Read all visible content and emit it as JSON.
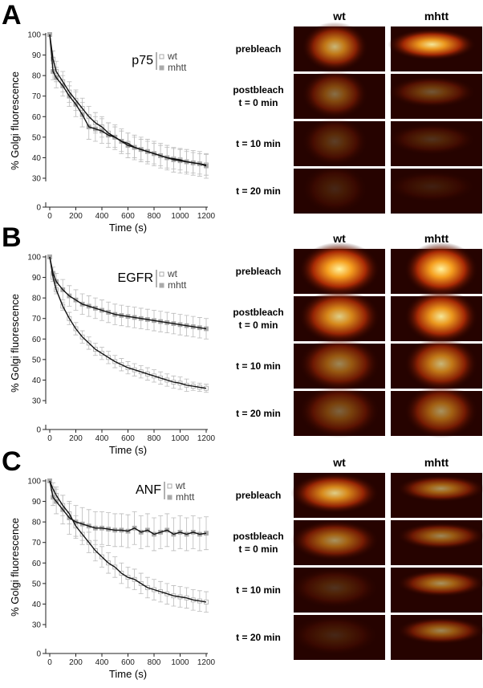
{
  "panels": [
    {
      "label": "A",
      "images": {
        "columns": [
          "wt",
          "mhtt"
        ],
        "rows": [
          [
            "prebleach"
          ],
          [
            "postbleach",
            "t = 0 min"
          ],
          [
            "t = 10 min"
          ],
          [
            "t = 20 min"
          ]
        ]
      }
    },
    {
      "label": "B",
      "images": {
        "columns": [
          "wt",
          "mhtt"
        ],
        "rows": [
          [
            "prebleach"
          ],
          [
            "postbleach",
            "t = 0 min"
          ],
          [
            "t = 10 min"
          ],
          [
            "t = 20 min"
          ]
        ]
      }
    },
    {
      "label": "C",
      "images": {
        "columns": [
          "wt",
          "mhtt"
        ],
        "rows": [
          [
            "prebleach"
          ],
          [
            "postbleach",
            "t = 0 min"
          ],
          [
            "t = 10 min"
          ],
          [
            "t = 20 min"
          ]
        ]
      }
    }
  ],
  "chart_data": [
    {
      "type": "line",
      "y_label": "% Golgi fluorescence",
      "x_label": "Time (s)",
      "legend_title": "p75",
      "x": [
        0,
        25,
        50,
        100,
        150,
        200,
        250,
        300,
        350,
        400,
        450,
        500,
        550,
        600,
        650,
        700,
        750,
        800,
        850,
        900,
        950,
        1000,
        1050,
        1100,
        1150,
        1200
      ],
      "xlim": [
        0,
        1200
      ],
      "xticks": [
        0,
        200,
        400,
        600,
        800,
        1000,
        1200
      ],
      "ylim": [
        0,
        100
      ],
      "yticks": [
        0,
        30,
        40,
        50,
        60,
        70,
        80,
        90,
        100
      ],
      "broken_axis": true,
      "series": [
        {
          "name": "wt",
          "color": "#aaaaaa",
          "marker": "open",
          "values": [
            100,
            88,
            82,
            77,
            72,
            68,
            64,
            60,
            57,
            55,
            52,
            50,
            48,
            47,
            45,
            44,
            43,
            42,
            41,
            40,
            39.5,
            39,
            38,
            37.5,
            37,
            36.5
          ],
          "errors": [
            0,
            4,
            5,
            5,
            5,
            5,
            5,
            5,
            5,
            5,
            5,
            5,
            5,
            5,
            5,
            5,
            5,
            5,
            5,
            5,
            5,
            5,
            5,
            5,
            5,
            5
          ]
        },
        {
          "name": "mhtt",
          "color": "#aaaaaa",
          "marker": "filled",
          "values": [
            100,
            82,
            79,
            75,
            70,
            66,
            61,
            55,
            54,
            53,
            51,
            50,
            48,
            46,
            45,
            44,
            43,
            42,
            41,
            40,
            39,
            38.5,
            38,
            37.5,
            37,
            36
          ],
          "errors": [
            0,
            4,
            5,
            5,
            5,
            6,
            6,
            6,
            6,
            6,
            6,
            6,
            6,
            6,
            6,
            6,
            6,
            6,
            6,
            6,
            6,
            6,
            6,
            6,
            6,
            6
          ]
        }
      ]
    },
    {
      "type": "line",
      "y_label": "% Golgi fluorescence",
      "x_label": "Time (s)",
      "legend_title": "EGFR",
      "x": [
        0,
        25,
        50,
        100,
        150,
        200,
        250,
        300,
        350,
        400,
        450,
        500,
        550,
        600,
        650,
        700,
        750,
        800,
        850,
        900,
        950,
        1000,
        1050,
        1100,
        1150,
        1200
      ],
      "xlim": [
        0,
        1200
      ],
      "xticks": [
        0,
        200,
        400,
        600,
        800,
        1000,
        1200
      ],
      "ylim": [
        0,
        100
      ],
      "yticks": [
        0,
        30,
        40,
        50,
        60,
        70,
        80,
        90,
        100
      ],
      "broken_axis": true,
      "series": [
        {
          "name": "wt",
          "color": "#aaaaaa",
          "marker": "open",
          "values": [
            100,
            90,
            84,
            76,
            70,
            65,
            61,
            58,
            55,
            53,
            51,
            49,
            47.5,
            46,
            45,
            44,
            43,
            42,
            41,
            40,
            39,
            38.5,
            37.5,
            37,
            36.5,
            36
          ],
          "errors": [
            0,
            2,
            2,
            2,
            3,
            3,
            3,
            3,
            3,
            3,
            3,
            3,
            3,
            3,
            3,
            3,
            3,
            3,
            3,
            3,
            3,
            3,
            3,
            2,
            2,
            2
          ]
        },
        {
          "name": "mhtt",
          "color": "#aaaaaa",
          "marker": "filled",
          "values": [
            100,
            92,
            88,
            84,
            81,
            79,
            77,
            76,
            75,
            74,
            73,
            72,
            71.5,
            71,
            70.5,
            70,
            69.5,
            69,
            68.5,
            68,
            67.5,
            67,
            66.5,
            66,
            65.5,
            65
          ],
          "errors": [
            0,
            3,
            4,
            5,
            5,
            5,
            5,
            5,
            5,
            5,
            5,
            5,
            5,
            5,
            5,
            5,
            5,
            5,
            5,
            5,
            5,
            5,
            5,
            5,
            5,
            5
          ]
        }
      ]
    },
    {
      "type": "line",
      "y_label": "% Golgi fluorescence",
      "x_label": "Time (s)",
      "legend_title": "ANF",
      "x": [
        0,
        25,
        50,
        100,
        150,
        200,
        250,
        300,
        350,
        400,
        450,
        500,
        550,
        600,
        650,
        700,
        750,
        800,
        850,
        900,
        950,
        1000,
        1050,
        1100,
        1150,
        1200
      ],
      "xlim": [
        0,
        1200
      ],
      "xticks": [
        0,
        200,
        400,
        600,
        800,
        1000,
        1200
      ],
      "ylim": [
        0,
        100
      ],
      "yticks": [
        0,
        30,
        40,
        50,
        60,
        70,
        80,
        90,
        100
      ],
      "broken_axis": true,
      "series": [
        {
          "name": "wt",
          "color": "#aaaaaa",
          "marker": "open",
          "values": [
            100,
            96,
            93,
            88,
            84,
            78,
            74,
            70,
            66,
            63,
            60,
            58,
            55,
            53,
            52,
            50,
            48,
            47,
            46,
            45,
            44,
            43.5,
            43,
            42,
            41.5,
            41
          ],
          "errors": [
            0,
            3,
            4,
            5,
            5,
            5,
            5,
            5,
            5,
            5,
            5,
            5,
            5,
            5,
            5,
            5,
            5,
            5,
            5,
            5,
            5,
            5,
            5,
            5,
            5,
            5
          ]
        },
        {
          "name": "mhtt",
          "color": "#aaaaaa",
          "marker": "filled",
          "values": [
            100,
            92,
            90,
            86,
            82,
            80,
            79,
            78,
            77,
            77,
            76.5,
            76,
            76,
            75.5,
            77,
            75,
            76,
            74,
            75,
            76,
            74,
            75,
            74,
            75,
            74,
            74.5
          ],
          "errors": [
            0,
            4,
            6,
            7,
            8,
            8,
            8,
            8,
            8,
            8,
            8,
            8,
            8,
            8,
            8,
            8,
            8,
            8,
            8,
            8,
            8,
            8,
            8,
            8,
            8,
            8
          ]
        }
      ]
    }
  ]
}
